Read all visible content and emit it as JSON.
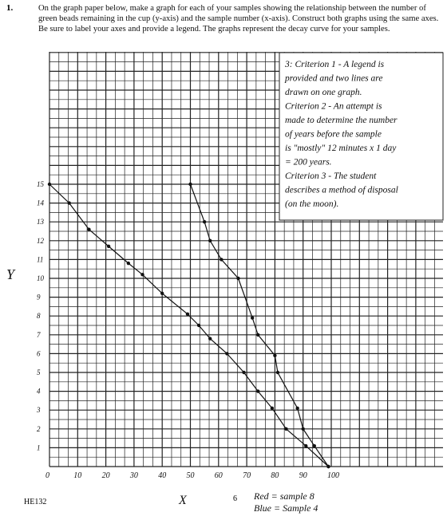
{
  "question": {
    "number": "1.",
    "text": "On the graph paper below, make a graph for each of your samples showing the relationship between the number of green beads remaining in the cup (y-axis) and the sample number (x-axis). Construct both graphs using the same axes. Be sure to label your axes and provide a legend. The graphs represent the decay curve for your samples."
  },
  "graph": {
    "y_axis_label": "Y",
    "x_axis_label": "X",
    "y_labels": [
      "1",
      "2",
      "3",
      "4",
      "5",
      "6",
      "7",
      "8",
      "9",
      "10",
      "11",
      "12",
      "13",
      "14",
      "15"
    ],
    "x_labels": [
      "0",
      "10",
      "20",
      "30",
      "40",
      "50",
      "60",
      "70",
      "80",
      "90",
      "100"
    ],
    "series": [
      {
        "x": [
          0,
          7,
          14,
          21,
          28,
          33,
          40,
          49,
          53,
          57,
          63,
          69,
          74,
          79,
          84,
          91,
          99
        ],
        "y": [
          15,
          14,
          12.6,
          11.7,
          10.8,
          10.2,
          9.2,
          8.1,
          7.5,
          6.8,
          6,
          5,
          4,
          3.1,
          2,
          1.1,
          0
        ]
      },
      {
        "x": [
          50,
          55,
          57,
          61,
          67,
          72,
          74,
          80,
          81,
          88,
          90,
          94,
          99
        ],
        "y": [
          15,
          13,
          12,
          11,
          10,
          7.9,
          7,
          5.9,
          5,
          3.1,
          2,
          1.1,
          0
        ]
      }
    ]
  },
  "annotation": [
    "3: Criterion 1 - A legend is",
    "provided and two lines are",
    "drawn on one graph.",
    "Criterion 2 - An attempt is",
    "made to determine the number",
    "of years before the sample",
    "is \"mostly\" 12 minutes x 1 day",
    "= 200 years.",
    "Criterion 3 - The student",
    "describes a method of disposal",
    "(on the moon)."
  ],
  "footer": {
    "code": "HE132",
    "page": "6",
    "legend": [
      "Red = sample 8",
      "Blue = Sample 4"
    ]
  }
}
